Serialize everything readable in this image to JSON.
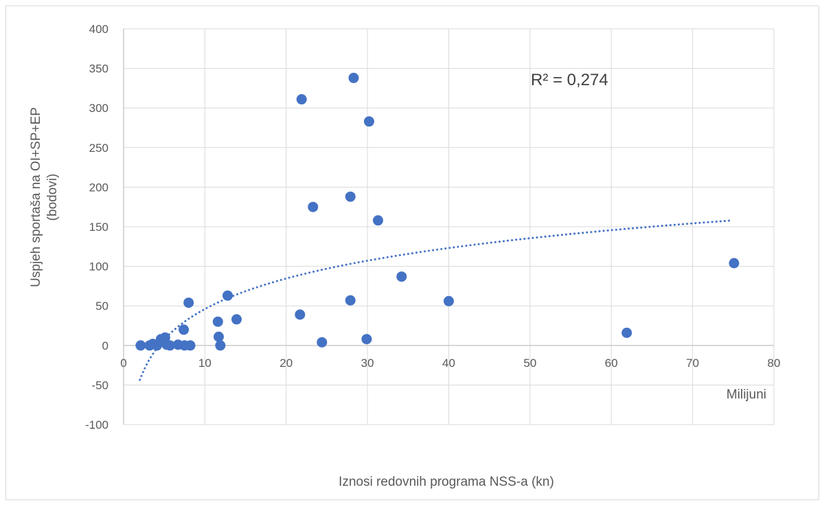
{
  "chart_data": {
    "type": "scatter",
    "xlabel": "Iznosi redovnih programa NSS-a (kn)",
    "x_units_label": "Milijuni",
    "ylabel_line1": "Uspjeh sportaša na OI+SP+EP",
    "ylabel_line2": "(bodovi)",
    "xlim": [
      0,
      80
    ],
    "ylim": [
      -100,
      400
    ],
    "x_ticks": [
      0,
      10,
      20,
      30,
      40,
      50,
      60,
      70,
      80
    ],
    "y_ticks": [
      -100,
      -50,
      0,
      50,
      100,
      150,
      200,
      250,
      300,
      350,
      400
    ],
    "x_tick_labels": [
      "0",
      "10",
      "20",
      "30",
      "40",
      "50",
      "60",
      "70",
      "80"
    ],
    "y_tick_labels": [
      "-100",
      "-50",
      "0",
      "50",
      "100",
      "150",
      "200",
      "250",
      "300",
      "350",
      "400"
    ],
    "grid": "horizontal",
    "r2_label": "R² = 0,274",
    "point_color": "#4472c4",
    "trendline_color": "#4472c4",
    "trendline": {
      "type": "logarithmic",
      "slope": 55.6,
      "intercept": -82.0,
      "x_range": [
        2.0,
        74.6
      ]
    },
    "points": [
      {
        "x": 2.1,
        "y": 0
      },
      {
        "x": 3.2,
        "y": 0
      },
      {
        "x": 3.6,
        "y": 2
      },
      {
        "x": 4.1,
        "y": 0
      },
      {
        "x": 4.6,
        "y": 8
      },
      {
        "x": 5.1,
        "y": 10
      },
      {
        "x": 5.3,
        "y": 1
      },
      {
        "x": 5.7,
        "y": 0
      },
      {
        "x": 6.7,
        "y": 1
      },
      {
        "x": 7.4,
        "y": 20
      },
      {
        "x": 7.5,
        "y": 0
      },
      {
        "x": 8.0,
        "y": 54
      },
      {
        "x": 8.2,
        "y": 0
      },
      {
        "x": 11.6,
        "y": 30
      },
      {
        "x": 11.7,
        "y": 11
      },
      {
        "x": 11.9,
        "y": 0
      },
      {
        "x": 12.8,
        "y": 63
      },
      {
        "x": 13.9,
        "y": 33
      },
      {
        "x": 21.7,
        "y": 39
      },
      {
        "x": 21.9,
        "y": 311
      },
      {
        "x": 23.3,
        "y": 175
      },
      {
        "x": 24.4,
        "y": 4
      },
      {
        "x": 27.9,
        "y": 57
      },
      {
        "x": 27.9,
        "y": 188
      },
      {
        "x": 28.3,
        "y": 338
      },
      {
        "x": 29.9,
        "y": 8
      },
      {
        "x": 30.2,
        "y": 283
      },
      {
        "x": 31.3,
        "y": 158
      },
      {
        "x": 34.2,
        "y": 87
      },
      {
        "x": 40.0,
        "y": 56
      },
      {
        "x": 61.9,
        "y": 16
      },
      {
        "x": 75.1,
        "y": 104
      }
    ]
  }
}
